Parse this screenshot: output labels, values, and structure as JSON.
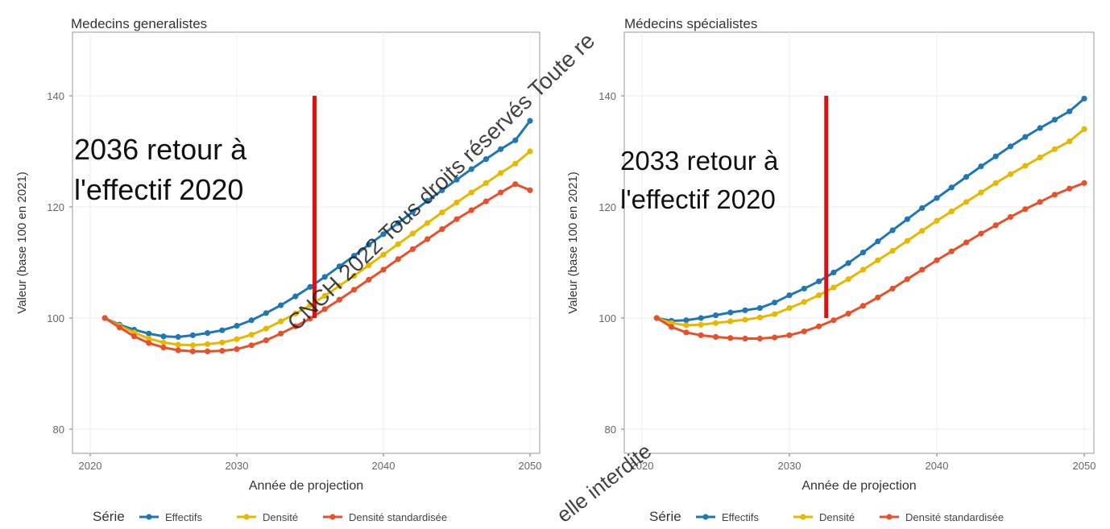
{
  "chart_data": [
    {
      "type": "line",
      "title": "Medecins generalistes",
      "xlabel": "Année de projection",
      "ylabel": "Valeur (base 100 en 2021)",
      "xlim": [
        2020,
        2050
      ],
      "ylim": [
        80,
        150
      ],
      "x_ticks": [
        "2020",
        "2030",
        "2040",
        "2050"
      ],
      "y_ticks": [
        "80",
        "100",
        "120",
        "140"
      ],
      "grid": true,
      "legend_position": "bottom",
      "legend_title": "Série",
      "annotation": [
        "2036 retour à",
        "l'effectif 2020"
      ],
      "marker_year": 2035.3,
      "marker_range": [
        100,
        140
      ],
      "x": [
        2021,
        2022,
        2023,
        2024,
        2025,
        2026,
        2027,
        2028,
        2029,
        2030,
        2031,
        2032,
        2033,
        2034,
        2035,
        2036,
        2037,
        2038,
        2039,
        2040,
        2041,
        2042,
        2043,
        2044,
        2045,
        2046,
        2047,
        2048,
        2049,
        2050
      ],
      "series": [
        {
          "name": "Effectifs",
          "color": "#1f77b4",
          "values": [
            100,
            98.8,
            97.9,
            97.2,
            96.7,
            96.6,
            96.9,
            97.3,
            97.8,
            98.6,
            99.6,
            100.9,
            102.3,
            103.9,
            105.6,
            107.4,
            109.3,
            111.2,
            113.2,
            115.1,
            117.1,
            119.1,
            121.1,
            123.0,
            124.9,
            126.8,
            128.6,
            130.4,
            132.0,
            135.5
          ]
        },
        {
          "name": "Densité",
          "color": "#e6b800",
          "values": [
            100,
            98.6,
            97.4,
            96.3,
            95.6,
            95.2,
            95.1,
            95.3,
            95.6,
            96.2,
            97.0,
            98.1,
            99.4,
            100.8,
            102.3,
            104.0,
            105.8,
            107.6,
            109.5,
            111.4,
            113.3,
            115.2,
            117.1,
            119.0,
            120.8,
            122.6,
            124.3,
            126.1,
            127.8,
            130.0
          ]
        },
        {
          "name": "Densité standardisée",
          "color": "#e8502b",
          "values": [
            100,
            98.3,
            96.7,
            95.5,
            94.7,
            94.2,
            94.0,
            94.0,
            94.1,
            94.4,
            95.1,
            96.0,
            97.2,
            98.5,
            99.9,
            101.6,
            103.3,
            105.1,
            106.9,
            108.7,
            110.6,
            112.4,
            114.2,
            116.0,
            117.8,
            119.4,
            121.0,
            122.6,
            124.1,
            123.0
          ]
        }
      ]
    },
    {
      "type": "line",
      "title": "Médecins spécialistes",
      "xlabel": "Année de projection",
      "ylabel": "Valeur (base 100 en 2021)",
      "xlim": [
        2020,
        2050
      ],
      "ylim": [
        80,
        150
      ],
      "x_ticks": [
        "2020",
        "2030",
        "2040",
        "2050"
      ],
      "y_ticks": [
        "80",
        "100",
        "120",
        "140"
      ],
      "grid": true,
      "legend_position": "bottom",
      "legend_title": "Série",
      "annotation": [
        "2033 retour à",
        "l'effectif 2020"
      ],
      "marker_year": 2032.5,
      "marker_range": [
        100,
        140
      ],
      "x": [
        2021,
        2022,
        2023,
        2024,
        2025,
        2026,
        2027,
        2028,
        2029,
        2030,
        2031,
        2032,
        2033,
        2034,
        2035,
        2036,
        2037,
        2038,
        2039,
        2040,
        2041,
        2042,
        2043,
        2044,
        2045,
        2046,
        2047,
        2048,
        2049,
        2050
      ],
      "series": [
        {
          "name": "Effectifs",
          "color": "#1f77b4",
          "values": [
            100,
            99.5,
            99.6,
            100.0,
            100.5,
            101.0,
            101.4,
            101.8,
            102.8,
            104.1,
            105.3,
            106.6,
            108.2,
            109.9,
            111.8,
            113.8,
            115.8,
            117.8,
            119.8,
            121.6,
            123.5,
            125.4,
            127.3,
            129.1,
            130.9,
            132.6,
            134.2,
            135.7,
            137.2,
            139.5
          ]
        },
        {
          "name": "Densité",
          "color": "#e6b800",
          "values": [
            100,
            99.1,
            98.7,
            98.8,
            99.1,
            99.4,
            99.7,
            100.1,
            100.7,
            101.8,
            102.9,
            104.1,
            105.5,
            107.0,
            108.7,
            110.4,
            112.1,
            113.9,
            115.7,
            117.5,
            119.2,
            120.9,
            122.6,
            124.3,
            125.9,
            127.4,
            128.9,
            130.4,
            131.8,
            134.0
          ]
        },
        {
          "name": "Densité standardisée",
          "color": "#e8502b",
          "values": [
            100,
            98.4,
            97.4,
            96.9,
            96.6,
            96.4,
            96.3,
            96.3,
            96.5,
            96.9,
            97.6,
            98.5,
            99.6,
            100.8,
            102.2,
            103.7,
            105.3,
            107.0,
            108.7,
            110.4,
            112.0,
            113.6,
            115.2,
            116.7,
            118.2,
            119.6,
            120.9,
            122.2,
            123.3,
            124.3
          ]
        }
      ]
    }
  ],
  "watermark_upper": "CNCH 2022 Tous droits réservés Toute re",
  "watermark_lower": "elle interdite"
}
